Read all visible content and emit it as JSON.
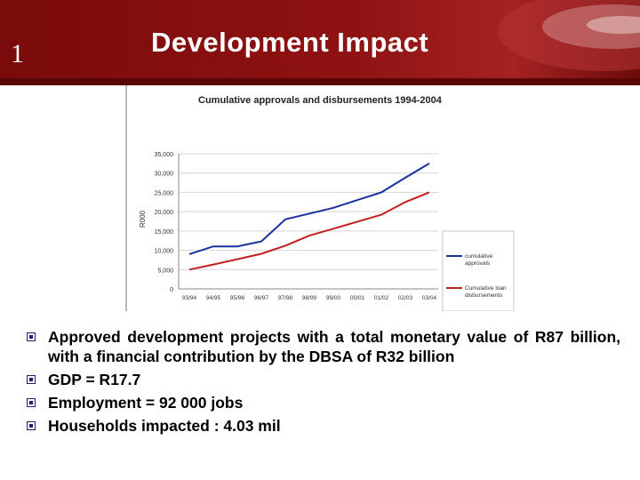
{
  "slide": {
    "number": "1",
    "title": "Development Impact"
  },
  "chart_data": {
    "type": "line",
    "title": "Cumulative approvals and disbursements 1994-2004",
    "ylabel": "R000",
    "xlabel": "",
    "ylim": [
      0,
      35000
    ],
    "grid": "horizontal",
    "legend_position": "right",
    "y_ticks": [
      "0",
      "5,000",
      "10,000",
      "15,000",
      "20,000",
      "25,000",
      "30,000",
      "35,000"
    ],
    "categories": [
      "93/94",
      "94/95",
      "95/96",
      "96/97",
      "97/98",
      "98/99",
      "99/00",
      "00/01",
      "01/02",
      "02/03",
      "03/04"
    ],
    "series": [
      {
        "name": "cumulative approvals",
        "color": "#1c2fa0",
        "values": [
          9000,
          11000,
          11000,
          12300,
          18000,
          19500,
          21000,
          23000,
          25000,
          28800,
          32500
        ]
      },
      {
        "name": "Cumulative loan disbursements",
        "color": "#c41e1e",
        "values": [
          5000,
          6300,
          7700,
          9100,
          11200,
          13800,
          15600,
          17400,
          19200,
          22500,
          25000
        ]
      }
    ]
  },
  "bullets": [
    "Approved development projects with a total monetary value of R87 billion, with a financial contribution by the DBSA of R32 billion",
    "GDP = R17.7",
    "Employment = 92 000 jobs",
    "Households impacted : 4.03 mil"
  ]
}
